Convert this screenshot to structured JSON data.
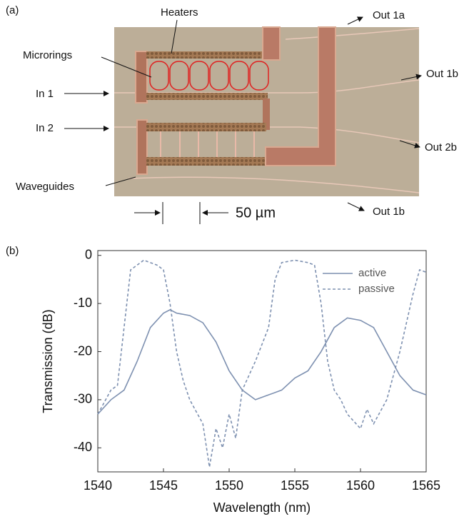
{
  "panel_a": {
    "label": "(a)",
    "heaters": "Heaters",
    "microrings": "Microrings",
    "in1": "In 1",
    "in2": "In 2",
    "waveguides": "Waveguides",
    "out_top": "Out 1a",
    "out_right1": "Out 1b",
    "out_right2": "Out 2b",
    "out_bottom": "Out 1b",
    "scale": "50 µm"
  },
  "panel_b": {
    "label": "(b)"
  },
  "chart_data": {
    "type": "line",
    "xlabel": "Wavelength (nm)",
    "ylabel": "Transmission (dB)",
    "xlim": [
      1540,
      1565
    ],
    "xticks": [
      1540,
      1545,
      1550,
      1555,
      1560,
      1565
    ],
    "ylim": [
      -45,
      1
    ],
    "yticks": [
      0,
      -10,
      -20,
      -30,
      -40
    ],
    "legend": "upper right",
    "series": [
      {
        "name": "active",
        "color": "#7d90b0",
        "line_style": "solid",
        "x": [
          1540,
          1541,
          1542,
          1543,
          1544,
          1545,
          1545.5,
          1546,
          1547,
          1548,
          1549,
          1550,
          1551,
          1552,
          1553,
          1554,
          1555,
          1556,
          1557,
          1558,
          1559,
          1560,
          1561,
          1562,
          1563,
          1564,
          1565
        ],
        "values": [
          -33,
          -30,
          -28,
          -22,
          -15,
          -12,
          -11.3,
          -12,
          -12.5,
          -14,
          -18,
          -24,
          -28,
          -30,
          -29,
          -28,
          -25.5,
          -24,
          -20,
          -15,
          -13,
          -13.5,
          -15,
          -20,
          -25,
          -28,
          -29
        ]
      },
      {
        "name": "passive",
        "color": "#7d90b0",
        "line_style": "dashed",
        "x": [
          1540,
          1541,
          1541.5,
          1542,
          1542.5,
          1543,
          1543.5,
          1544,
          1544.5,
          1545,
          1545.5,
          1546,
          1546.5,
          1547,
          1548,
          1548.5,
          1549,
          1549.5,
          1550,
          1550.5,
          1551,
          1552,
          1553,
          1553.5,
          1554,
          1555,
          1556,
          1556.5,
          1557,
          1557.5,
          1558,
          1558.5,
          1559,
          1560,
          1560.5,
          1561,
          1562,
          1563,
          1564,
          1564.5,
          1565
        ],
        "values": [
          -33,
          -28,
          -27,
          -15,
          -3,
          -2,
          -1,
          -1.5,
          -2,
          -3,
          -10,
          -20,
          -26,
          -30,
          -35,
          -44,
          -36,
          -40,
          -33,
          -38,
          -28,
          -22,
          -15,
          -5,
          -1.5,
          -1,
          -1.5,
          -2,
          -10,
          -22,
          -28,
          -30,
          -33,
          -36,
          -32,
          -35,
          -30,
          -20,
          -8,
          -3,
          -3.5
        ]
      }
    ]
  }
}
